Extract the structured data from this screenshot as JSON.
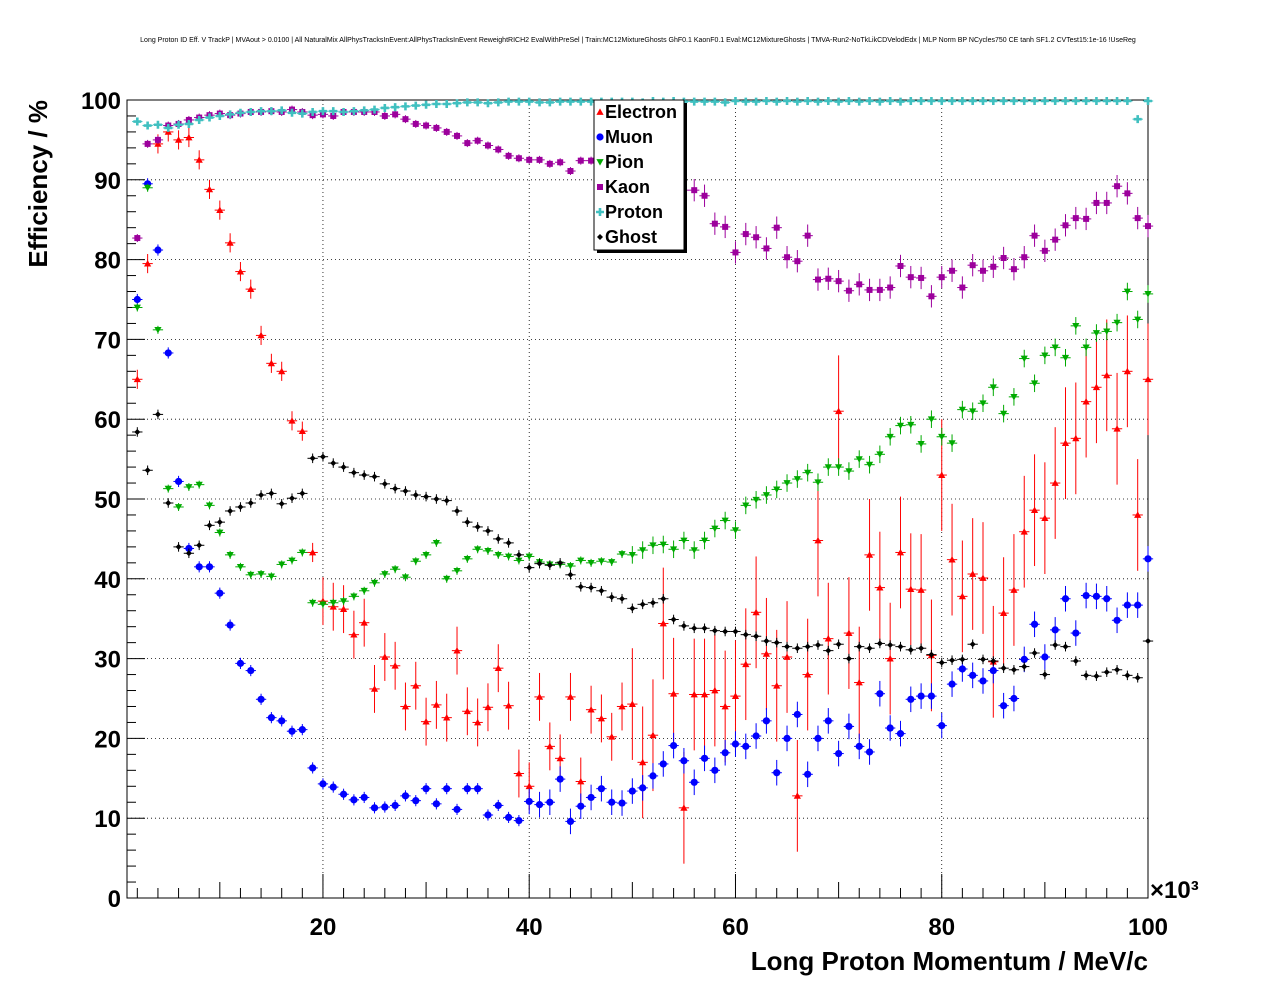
{
  "title": "Long Proton ID Eff. V TrackP | MVAout > 0.0100 | All NaturalMix AllPhysTracksInEvent:AllPhysTracksInEvent ReweightRICH2 EvalWithPreSel | Train:MC12MixtureGhosts GhF0.1 KaonF0.1 Eval:MC12MixtureGhosts | TMVA-Run2-NoTkLikCDVelodEdx | MLP Norm BP NCycles750 CE tanh SF1.2 CVTest15:1e-16 !UseReg",
  "chart_data": {
    "type": "scatter",
    "title": "Long Proton ID Eff. V TrackP | MVAout > 0.0100 | All NaturalMix AllPhysTracksInEvent:AllPhysTracksInEvent ReweightRICH2 EvalWithPreSel | Train:MC12MixtureGhosts GhF0.1 KaonF0.1 Eval:MC12MixtureGhosts | TMVA-Run2-NoTkLikCDVelodEdx | MLP Norm BP NCycles750 CE tanh SF1.2 CVTest15:1e-16 !UseReg",
    "xlabel": "Long Proton Momentum / MeV/c",
    "ylabel": "Efficiency / %",
    "x_multiplier": "×10³",
    "xlim": [
      1,
      100
    ],
    "ylim": [
      0,
      100
    ],
    "xticks": [
      "20",
      "40",
      "60",
      "80",
      "100"
    ],
    "yticks": [
      "0",
      "10",
      "20",
      "30",
      "40",
      "50",
      "60",
      "70",
      "80",
      "90",
      "100"
    ],
    "grid": true,
    "legend_position": "top-center",
    "x": [
      2,
      3,
      4,
      5,
      6,
      7,
      8,
      9,
      10,
      11,
      12,
      13,
      14,
      15,
      16,
      17,
      18,
      19,
      20,
      21,
      22,
      23,
      24,
      25,
      26,
      27,
      28,
      29,
      30,
      31,
      32,
      33,
      34,
      35,
      36,
      37,
      38,
      39,
      40,
      41,
      42,
      43,
      44,
      45,
      46,
      47,
      48,
      49,
      50,
      51,
      52,
      53,
      54,
      55,
      56,
      57,
      58,
      59,
      60,
      61,
      62,
      63,
      64,
      65,
      66,
      67,
      68,
      69,
      70,
      71,
      72,
      73,
      74,
      75,
      76,
      77,
      78,
      79,
      80,
      81,
      82,
      83,
      84,
      85,
      86,
      87,
      88,
      89,
      90,
      91,
      92,
      93,
      94,
      95,
      96,
      97,
      98,
      99,
      100
    ],
    "series": [
      {
        "name": "Electron",
        "color": "#ff0000",
        "marker": "triangle-up",
        "values": [
          65,
          79.5,
          94.5,
          96,
          95,
          95.3,
          92.5,
          88.8,
          86.2,
          82.1,
          78.5,
          76.3,
          70.5,
          67,
          66,
          59.8,
          58.5,
          43.3,
          37.2,
          36.5,
          36.2,
          33,
          34.5,
          26.2,
          30.2,
          29.1,
          24,
          26.6,
          22.1,
          24.2,
          22.6,
          31,
          23.4,
          22,
          23.9,
          28.8,
          24.1,
          15.6,
          14,
          25.2,
          19,
          17.5,
          25.2,
          14.6,
          23.6,
          22.5,
          20.2,
          24,
          24.3,
          17,
          20.4,
          34.4,
          25.6,
          11.3,
          25.5,
          25.5,
          26,
          24,
          25.3,
          29.3,
          35.8,
          30.6,
          26.6,
          30.2,
          12.8,
          28,
          44.8,
          32.5,
          61,
          33.2,
          27,
          43,
          38.9,
          30,
          43.3,
          38.7,
          38.6,
          30.4,
          53,
          42.4,
          37.8,
          40.6,
          40.1,
          29.6,
          35.7,
          38.6,
          45.9,
          48.6,
          47.6,
          52,
          57,
          57.6,
          62.2,
          64,
          65.5,
          58.8,
          66,
          48,
          65
        ]
      },
      {
        "name": "Muon",
        "color": "#0000ff",
        "marker": "circle",
        "values": [
          75,
          89.5,
          81.2,
          68.3,
          52.2,
          43.8,
          41.5,
          41.5,
          38.2,
          34.2,
          29.4,
          28.5,
          24.9,
          22.6,
          22.2,
          20.9,
          21.1,
          16.3,
          14.3,
          13.9,
          13,
          12.3,
          12.6,
          11.3,
          11.4,
          11.6,
          12.8,
          12.2,
          13.7,
          11.8,
          13.7,
          11.1,
          13.7,
          13.7,
          10.4,
          11.6,
          10.1,
          9.7,
          12.1,
          11.7,
          12,
          14.9,
          9.6,
          11.5,
          12.6,
          13.7,
          12,
          11.9,
          13.4,
          13.8,
          15.3,
          16.8,
          19.1,
          17.2,
          14.5,
          17.5,
          16,
          18.2,
          19.3,
          19,
          20.3,
          22.2,
          15.7,
          20,
          23,
          15.5,
          20,
          22.2,
          18.1,
          21.5,
          19,
          18.3,
          25.6,
          21.3,
          20.6,
          24.9,
          25.3,
          25.3,
          21.6,
          26.8,
          28.7,
          27.9,
          27.2,
          28.5,
          24.1,
          25,
          29.9,
          34.3,
          30.2,
          33.6,
          37.5,
          33.2,
          37.9,
          37.8,
          37.5,
          34.8,
          36.7,
          36.7,
          42.5
        ]
      },
      {
        "name": "Pion",
        "color": "#00aa00",
        "marker": "triangle-down",
        "values": [
          74,
          89,
          71.2,
          51.3,
          49,
          51.5,
          51.8,
          49.2,
          45.8,
          43,
          41.5,
          40.5,
          40.6,
          40.3,
          41.8,
          42.3,
          43.3,
          37,
          36.8,
          37,
          37.2,
          37.8,
          38.5,
          39.5,
          40.6,
          41.2,
          40.2,
          42.2,
          43,
          44.5,
          40,
          41,
          42.5,
          43.7,
          43.5,
          43,
          42.8,
          42.3,
          42.8,
          42.1,
          41.8,
          41.8,
          41.6,
          42.3,
          42,
          42.2,
          42.1,
          43.1,
          43,
          43.6,
          44.2,
          44.3,
          43.7,
          44.8,
          43.6,
          44.8,
          46.3,
          47.3,
          46.1,
          49.2,
          49.9,
          50.5,
          51.2,
          52,
          52.5,
          53.3,
          52.1,
          54,
          54,
          53.5,
          55,
          54.3,
          55.6,
          57.8,
          59.2,
          59.3,
          56.9,
          60,
          57.8,
          57,
          61.2,
          61,
          62,
          64,
          60.7,
          62.8,
          67.6,
          64.5,
          68,
          69,
          67.7,
          71.7,
          69,
          70.8,
          71,
          72.1,
          76,
          72.5,
          75.7
        ]
      },
      {
        "name": "Kaon",
        "color": "#9c009c",
        "marker": "square",
        "values": [
          82.7,
          94.5,
          95,
          96.8,
          97,
          97.5,
          97.8,
          98.1,
          98.3,
          98.1,
          98.3,
          98.5,
          98.5,
          98.6,
          98.5,
          98.8,
          98.5,
          98.1,
          98.2,
          98,
          98.5,
          98.5,
          98.5,
          98.5,
          98,
          98.2,
          97.6,
          97,
          96.8,
          96.5,
          96,
          95.5,
          94.6,
          94.9,
          94.3,
          93.8,
          93,
          92.7,
          92.5,
          92.5,
          92,
          92.2,
          91.1,
          92.4,
          92.4,
          92.1,
          91.5,
          91.3,
          90.4,
          90.3,
          90.4,
          88.8,
          88.5,
          88.7,
          88.7,
          88,
          84.5,
          84.1,
          80.9,
          83.2,
          82.8,
          81.4,
          84,
          80.3,
          79.8,
          83,
          77.5,
          77.6,
          77.3,
          76.1,
          76.9,
          76.2,
          76.2,
          76.5,
          79.2,
          77.8,
          77.7,
          75.4,
          77.8,
          78.6,
          76.5,
          79.3,
          78.6,
          79.1,
          80.2,
          78.8,
          80.3,
          83,
          81.1,
          82.5,
          84.3,
          85.2,
          85.1,
          87.1,
          87.1,
          89.2,
          88.3,
          85.2,
          84.2
        ]
      },
      {
        "name": "Proton",
        "color": "#40c0c0",
        "marker": "cross",
        "values": [
          97.3,
          96.8,
          96.9,
          96.5,
          96.9,
          97,
          97.5,
          97.8,
          98,
          98.2,
          98.4,
          98.5,
          98.6,
          98.6,
          98.7,
          98.4,
          98.3,
          98.5,
          98.6,
          98.6,
          98.5,
          98.6,
          98.7,
          98.8,
          99,
          99.1,
          99.2,
          99.3,
          99.4,
          99.5,
          99.5,
          99.6,
          99.7,
          99.7,
          99.6,
          99.7,
          99.8,
          99.8,
          99.8,
          99.7,
          99.7,
          99.8,
          99.8,
          99.8,
          99.8,
          99.8,
          99.8,
          99.8,
          99.8,
          99.7,
          99.9,
          99.8,
          99.9,
          99.8,
          99.8,
          99.8,
          99.8,
          99.7,
          99.9,
          99.8,
          99.8,
          99.9,
          99.8,
          99.9,
          99.8,
          99.9,
          99.8,
          99.9,
          99.8,
          99.9,
          99.8,
          99.9,
          99.8,
          99.9,
          99.8,
          99.9,
          99.9,
          99.9,
          99.9,
          99.9,
          99.9,
          99.9,
          99.9,
          99.9,
          99.9,
          99.9,
          99.9,
          99.9,
          99.9,
          99.9,
          99.9,
          99.9,
          99.9,
          99.9,
          99.9,
          99.9,
          99.9,
          97.6,
          99.9
        ]
      },
      {
        "name": "Ghost",
        "color": "#000000",
        "marker": "diamond",
        "values": [
          58.4,
          53.6,
          60.6,
          49.5,
          44,
          43.2,
          44.2,
          46.7,
          47.1,
          48.5,
          49,
          49.5,
          50.5,
          50.7,
          49.4,
          50.1,
          50.7,
          55.1,
          55.3,
          54.5,
          54,
          53.3,
          53,
          52.8,
          51.9,
          51.3,
          51,
          50.5,
          50.3,
          50,
          49.8,
          48.5,
          47.1,
          46.5,
          46,
          45,
          44.5,
          43,
          41.4,
          41.9,
          41.7,
          42,
          40.5,
          39,
          38.9,
          38.5,
          37.7,
          37.5,
          36.3,
          36.8,
          37,
          37.5,
          34.9,
          34.1,
          33.8,
          33.8,
          33.5,
          33.4,
          33.4,
          33,
          32.8,
          32.2,
          32,
          31.5,
          31.3,
          31.5,
          31.7,
          31,
          31.8,
          30,
          31.5,
          31.3,
          31.9,
          31.7,
          31.5,
          31.1,
          31.3,
          30.5,
          29.5,
          29.8,
          29.9,
          31.8,
          29.9,
          29.7,
          28.8,
          28.6,
          29,
          30.7,
          28,
          31.7,
          31.5,
          29.7,
          27.9,
          27.8,
          28.3,
          28.6,
          27.9,
          27.6,
          32.2
        ]
      }
    ]
  }
}
